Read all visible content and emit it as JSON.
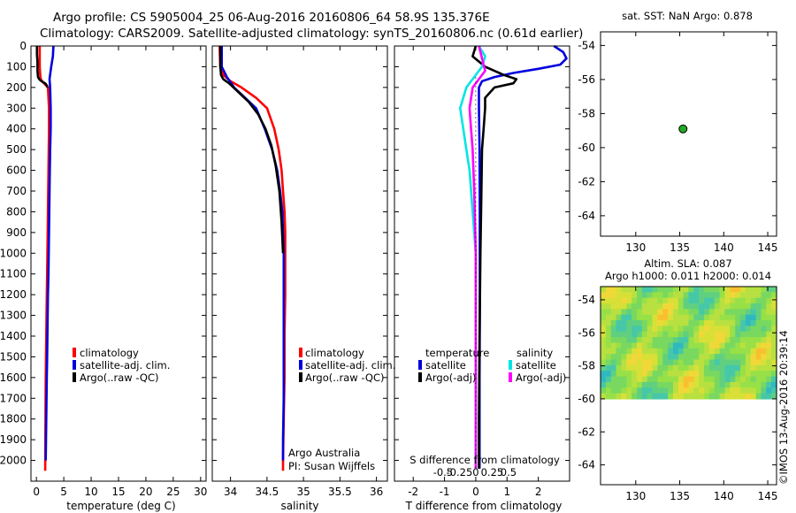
{
  "header": {
    "title_line1": "Argo profile: CS 5905004_25 06-Aug-2016 20160806_64 58.9S 135.376E",
    "title_line2": "Climatology: CARS2009. Satellite-adjusted climatology: synTS_20160806.nc (0.61d earlier)"
  },
  "colors": {
    "climatology": "#ff0000",
    "satellite": "#0000dd",
    "argo": "#000000",
    "salinity_sat": "#00e5e5",
    "salinity_argo": "#ff00ff",
    "map_dot": "#22aa22"
  },
  "chart_data": [
    {
      "type": "line",
      "name": "temperature-profile",
      "xlabel": "temperature (deg C)",
      "ylabel": "",
      "xlim": [
        -1,
        31
      ],
      "ylim": [
        2100,
        0
      ],
      "xticks": [
        0,
        5,
        10,
        15,
        20,
        25,
        30
      ],
      "xtick_labels": [
        "0",
        "5",
        "10",
        "15",
        "20",
        "25",
        "30"
      ],
      "yticks": [
        0,
        100,
        200,
        300,
        400,
        500,
        600,
        700,
        800,
        900,
        1000,
        1100,
        1200,
        1300,
        1400,
        1500,
        1600,
        1700,
        1800,
        1900,
        2000
      ],
      "ytick_labels": [
        "0",
        "100",
        "200",
        "300",
        "400",
        "500",
        "600",
        "700",
        "800",
        "900",
        "1000",
        "1100",
        "1200",
        "1300",
        "1400",
        "1500",
        "1600",
        "1700",
        "1800",
        "1900",
        "2000"
      ],
      "legend": [
        "climatology",
        "satellite-adj. clim.",
        "Argo(..raw -QC)"
      ],
      "legend_position": "center-left",
      "series": [
        {
          "name": "climatology",
          "color": "#ff0000",
          "x": [
            0.6,
            0.6,
            0.7,
            0.8,
            1.2,
            2.1,
            2.3,
            2.3,
            2.25,
            2.2,
            2.15,
            2.1,
            2.05,
            2.0,
            1.95,
            1.9,
            1.85,
            1.8,
            1.75,
            1.7,
            1.65,
            1.6
          ],
          "y": [
            0,
            100,
            140,
            160,
            175,
            200,
            300,
            400,
            500,
            600,
            700,
            800,
            900,
            1000,
            1100,
            1200,
            1300,
            1400,
            1500,
            1600,
            1800,
            2050
          ]
        },
        {
          "name": "satellite-adj. clim.",
          "color": "#0000dd",
          "x": [
            3.1,
            3.0,
            2.7,
            2.4,
            2.5,
            2.6,
            2.6,
            2.5,
            2.45,
            2.4,
            2.35,
            2.3,
            2.25,
            2.2,
            2.1,
            2.0,
            1.95,
            1.9,
            1.8,
            1.7
          ],
          "y": [
            0,
            50,
            100,
            160,
            200,
            300,
            400,
            500,
            600,
            700,
            800,
            900,
            1000,
            1100,
            1200,
            1400,
            1500,
            1600,
            1800,
            2000
          ]
        },
        {
          "name": "Argo(..raw -QC)",
          "color": "#000000",
          "x": [
            0.1,
            0.1,
            0.2,
            0.2,
            0.3,
            0.5,
            0.9,
            1.6,
            1.9,
            2.0
          ],
          "y": [
            0,
            40,
            80,
            120,
            150,
            160,
            170,
            180,
            190,
            200
          ]
        }
      ]
    },
    {
      "type": "line",
      "name": "salinity-profile",
      "xlabel": "salinity",
      "xlim": [
        33.75,
        36.15
      ],
      "ylim": [
        2100,
        0
      ],
      "xticks": [
        34,
        34.5,
        35,
        35.5,
        36
      ],
      "xtick_labels": [
        "34",
        "34.5",
        "35",
        "35.5",
        "36"
      ],
      "legend": [
        "climatology",
        "satellite-adj. clim.",
        "Argo(..raw -QC)"
      ],
      "legend_position": "center-right",
      "annotations": [
        "Argo Australia",
        "PI: Susan Wijffels"
      ],
      "series": [
        {
          "name": "climatology",
          "color": "#ff0000",
          "x": [
            33.85,
            33.86,
            33.9,
            34.0,
            34.15,
            34.35,
            34.5,
            34.6,
            34.66,
            34.7,
            34.72,
            34.74,
            34.75,
            34.75,
            34.75,
            34.74,
            34.74,
            34.73,
            34.72,
            34.72
          ],
          "y": [
            0,
            100,
            140,
            170,
            200,
            250,
            300,
            400,
            500,
            600,
            700,
            800,
            900,
            1000,
            1200,
            1400,
            1600,
            1800,
            2000,
            2050
          ]
        },
        {
          "name": "satellite-adj. clim.",
          "color": "#0000dd",
          "x": [
            33.88,
            33.88,
            33.95,
            34.05,
            34.2,
            34.35,
            34.47,
            34.57,
            34.64,
            34.68,
            34.71,
            34.72,
            34.73,
            34.73,
            34.73,
            34.73,
            34.72,
            34.72
          ],
          "y": [
            0,
            100,
            150,
            200,
            250,
            300,
            400,
            500,
            600,
            700,
            800,
            900,
            1000,
            1200,
            1500,
            1700,
            1900,
            2000
          ]
        },
        {
          "name": "Argo(..raw -QC)",
          "color": "#000000",
          "x": [
            33.86,
            33.86,
            33.87,
            33.9,
            33.98,
            34.1,
            34.25,
            34.38,
            34.48,
            34.56,
            34.62,
            34.67,
            34.7,
            34.72
          ],
          "y": [
            0,
            100,
            140,
            160,
            180,
            220,
            270,
            330,
            400,
            480,
            580,
            700,
            850,
            1000
          ]
        }
      ]
    },
    {
      "type": "line",
      "name": "difference-profile",
      "xlabel": "T difference from climatology",
      "xlabel_top": "S difference from climatology",
      "xlim": [
        -2.6,
        3.0
      ],
      "ylim": [
        2100,
        0
      ],
      "xticks": [
        -2,
        -1,
        0,
        1,
        2
      ],
      "xtick_labels": [
        "-2",
        "-1",
        "0",
        "1",
        "2"
      ],
      "s_xticks": [
        -0.5,
        -0.25,
        0,
        0.25,
        0.5
      ],
      "s_xtick_labels": [
        "-0.5",
        "-0.25",
        "0",
        "0.25",
        "0.5"
      ],
      "legend_temperature_title": "temperature",
      "legend_salinity_title": "salinity",
      "legend": [
        "satellite",
        "Argo(-adj)",
        "satellite",
        "Argo(-adj)"
      ],
      "series": [
        {
          "name": "satellite",
          "group": "temperature",
          "color": "#0000dd",
          "x": [
            2.5,
            2.8,
            2.9,
            2.7,
            2.0,
            1.2,
            0.6,
            0.2,
            0.1,
            0.1,
            0.12,
            0.13,
            0.13,
            0.13,
            0.12,
            0.12,
            0.12,
            0.12
          ],
          "y": [
            0,
            30,
            60,
            90,
            110,
            130,
            150,
            170,
            200,
            300,
            500,
            800,
            1000,
            1300,
            1600,
            1800,
            1950,
            2040
          ]
        },
        {
          "name": "Argo(-adj)",
          "group": "temperature",
          "color": "#000000",
          "x": [
            0.0,
            -0.1,
            0.3,
            0.9,
            1.3,
            1.2,
            0.6,
            0.3,
            0.3,
            0.25,
            0.2,
            0.18,
            0.15,
            0.12,
            0.1,
            0.1
          ],
          "y": [
            0,
            50,
            100,
            140,
            160,
            180,
            200,
            250,
            300,
            400,
            500,
            700,
            1000,
            1400,
            1800,
            2040
          ]
        },
        {
          "name": "satellite",
          "group": "salinity",
          "color": "#00e5e5",
          "x": [
            0.1,
            0.3,
            0.2,
            -0.3,
            -0.5,
            -0.4,
            -0.3,
            -0.2,
            -0.1,
            0.0,
            0.0,
            0.0,
            0.0
          ],
          "y": [
            0,
            50,
            100,
            200,
            300,
            400,
            500,
            600,
            800,
            1000,
            1400,
            1800,
            2040
          ]
        },
        {
          "name": "Argo(-adj)",
          "group": "salinity",
          "color": "#ff00ff",
          "x": [
            0.1,
            0.2,
            0.3,
            -0.1,
            -0.2,
            -0.15,
            -0.1,
            -0.05,
            0.0,
            0.0,
            0.0
          ],
          "y": [
            0,
            60,
            120,
            200,
            300,
            400,
            500,
            700,
            1000,
            1500,
            2040
          ]
        }
      ]
    },
    {
      "type": "scatter",
      "name": "location-map",
      "title": "sat. SST: NaN Argo: 0.878",
      "xlim": [
        126,
        146
      ],
      "ylim": [
        -65.2,
        -53.2
      ],
      "xticks": [
        130,
        135,
        140,
        145
      ],
      "xtick_labels": [
        "130",
        "135",
        "140",
        "145"
      ],
      "yticks": [
        -54,
        -56,
        -58,
        -60,
        -62,
        -64
      ],
      "ytick_labels": [
        "-54",
        "-56",
        "-58",
        "-60",
        "-62",
        "-64"
      ],
      "points": [
        {
          "x": 135.376,
          "y": -58.9
        }
      ]
    },
    {
      "type": "heatmap",
      "name": "altimetry-map",
      "title_line1": "Altim. SLA: 0.087",
      "title_line2": "Argo h1000: 0.011 h2000: 0.014",
      "side_label": "©IMOS 13-Aug-2016 20:39:14",
      "xlim": [
        126,
        146
      ],
      "ylim": [
        -65.2,
        -53.2
      ],
      "xticks": [
        130,
        135,
        140,
        145
      ],
      "xtick_labels": [
        "130",
        "135",
        "140",
        "145"
      ],
      "yticks": [
        -54,
        -56,
        -58,
        -60,
        -62,
        -64
      ],
      "ytick_labels": [
        "-54",
        "-56",
        "-58",
        "-60",
        "-62",
        "-64"
      ],
      "data_extent_y": [
        -60,
        -53.2
      ]
    }
  ]
}
